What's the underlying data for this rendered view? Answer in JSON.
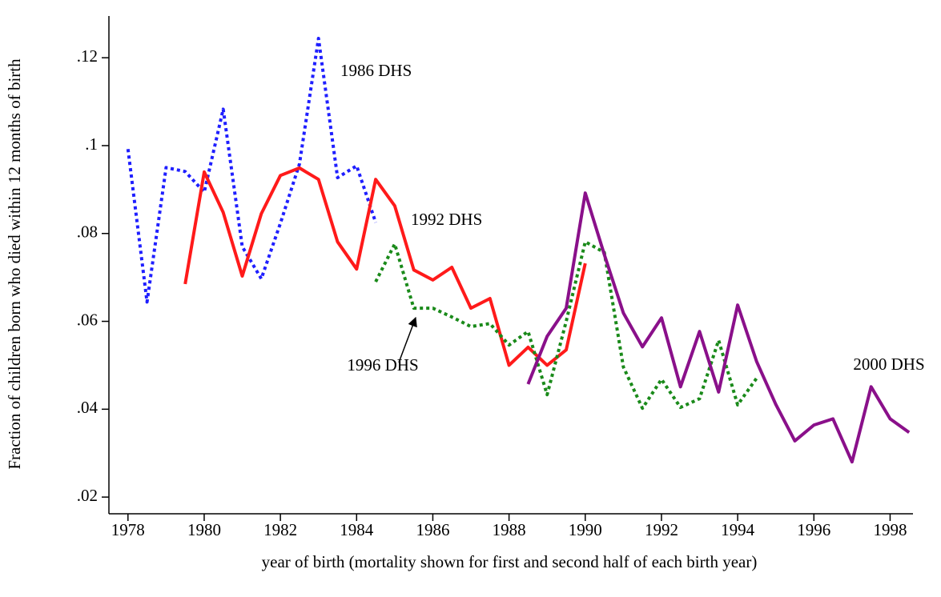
{
  "chart_data": {
    "type": "line",
    "x_label": "year of birth (mortality shown for first and second half of each birth year)",
    "y_label": "Fraction of children born who died within 12 months of birth",
    "xlim": [
      1977.5,
      1998.6
    ],
    "ylim": [
      0.0162,
      0.1295
    ],
    "xticks": [
      1978,
      1980,
      1982,
      1984,
      1986,
      1988,
      1990,
      1992,
      1994,
      1996,
      1998
    ],
    "yticks": [
      {
        "value": 0.02,
        "label": ".02"
      },
      {
        "value": 0.04,
        "label": ".04"
      },
      {
        "value": 0.06,
        "label": ".06"
      },
      {
        "value": 0.08,
        "label": ".08"
      },
      {
        "value": 0.1,
        "label": ".1"
      },
      {
        "value": 0.12,
        "label": ".12"
      }
    ],
    "grid": false,
    "series": [
      {
        "name": "1986 DHS",
        "color": "#1f1fff",
        "style": "dotted",
        "x": [
          1978,
          1978.5,
          1979,
          1979.5,
          1980,
          1980.5,
          1981,
          1981.5,
          1982,
          1982.5,
          1983,
          1983.5,
          1984,
          1984.5
        ],
        "values": [
          0.0992,
          0.0644,
          0.095,
          0.0941,
          0.0894,
          0.1083,
          0.077,
          0.0697,
          0.0823,
          0.0958,
          0.1244,
          0.0927,
          0.0954,
          0.0825
        ]
      },
      {
        "name": "1992 DHS",
        "color": "#ff1a1a",
        "style": "solid",
        "x": [
          1979.5,
          1980,
          1980.5,
          1981,
          1981.5,
          1982,
          1982.5,
          1983,
          1983.5,
          1984,
          1984.5,
          1985,
          1985.5,
          1986,
          1986.5,
          1987,
          1987.5,
          1988,
          1988.5,
          1989,
          1989.5,
          1990
        ],
        "values": [
          0.0685,
          0.094,
          0.0848,
          0.0703,
          0.0845,
          0.0932,
          0.0949,
          0.0923,
          0.0781,
          0.0719,
          0.0923,
          0.0863,
          0.0717,
          0.0694,
          0.0723,
          0.063,
          0.0652,
          0.05,
          0.0541,
          0.05,
          0.0535,
          0.0732
        ]
      },
      {
        "name": "1996 DHS",
        "color": "#1a8a1a",
        "style": "dotted",
        "x": [
          1984.5,
          1985,
          1985.5,
          1986,
          1986.5,
          1987,
          1987.5,
          1988,
          1988.5,
          1989,
          1989.5,
          1990,
          1990.5,
          1991,
          1991.5,
          1992,
          1992.5,
          1993,
          1993.5,
          1994,
          1994.5
        ],
        "values": [
          0.069,
          0.0776,
          0.063,
          0.063,
          0.061,
          0.0588,
          0.0595,
          0.0546,
          0.0577,
          0.0433,
          0.06,
          0.0781,
          0.0757,
          0.0496,
          0.0402,
          0.0468,
          0.0404,
          0.0424,
          0.0557,
          0.041,
          0.0471
        ]
      },
      {
        "name": "2000 DHS",
        "color": "#8a108a",
        "style": "solid",
        "x": [
          1988.5,
          1989,
          1989.5,
          1990,
          1990.5,
          1991,
          1991.5,
          1992,
          1992.5,
          1993,
          1993.5,
          1994,
          1994.5,
          1995,
          1995.5,
          1996,
          1996.5,
          1997,
          1997.5,
          1998,
          1998.5
        ],
        "values": [
          0.0457,
          0.0566,
          0.063,
          0.0892,
          0.0752,
          0.0619,
          0.0542,
          0.0608,
          0.0451,
          0.0577,
          0.0439,
          0.0637,
          0.0508,
          0.0411,
          0.0328,
          0.0364,
          0.0378,
          0.028,
          0.0451,
          0.0378,
          0.0347
        ]
      }
    ]
  }
}
